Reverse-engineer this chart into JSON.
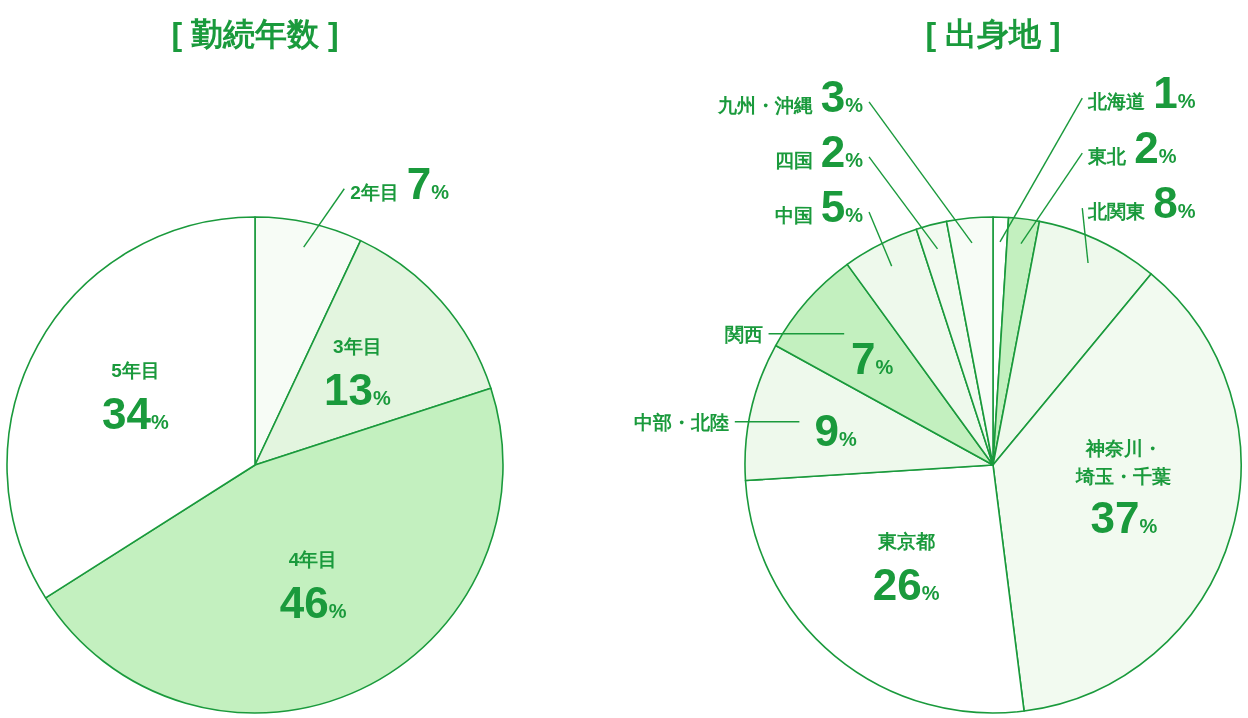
{
  "chart_data": [
    {
      "type": "pie",
      "title": "[ 勤続年数 ]",
      "categories": [
        "2年目",
        "3年目",
        "4年目",
        "5年目"
      ],
      "values": [
        7,
        13,
        46,
        34
      ],
      "value_labels": [
        "7%",
        "13%",
        "46%",
        "34%"
      ],
      "colors": [
        "#f7fcf6",
        "#e3f5df",
        "#c3f0bf",
        "#ffffff"
      ]
    },
    {
      "type": "pie",
      "title": "[ 出身地 ]",
      "categories": [
        "北海道",
        "東北",
        "北関東",
        "神奈川・埼玉・千葉",
        "東京都",
        "中部・北陸",
        "関西",
        "中国",
        "四国",
        "九州・沖縄"
      ],
      "values": [
        1,
        2,
        8,
        37,
        26,
        9,
        7,
        5,
        2,
        3
      ],
      "value_labels": [
        "1%",
        "2%",
        "8%",
        "37%",
        "26%",
        "9%",
        "7%",
        "5%",
        "2%",
        "3%"
      ],
      "colors": [
        "#ffffff",
        "#c3f0bf",
        "#eef9ec",
        "#f2faf0",
        "#ffffff",
        "#eef9ec",
        "#c3f0bf",
        "#eef9ec",
        "#f2faf0",
        "#f7fcf6"
      ]
    }
  ]
}
